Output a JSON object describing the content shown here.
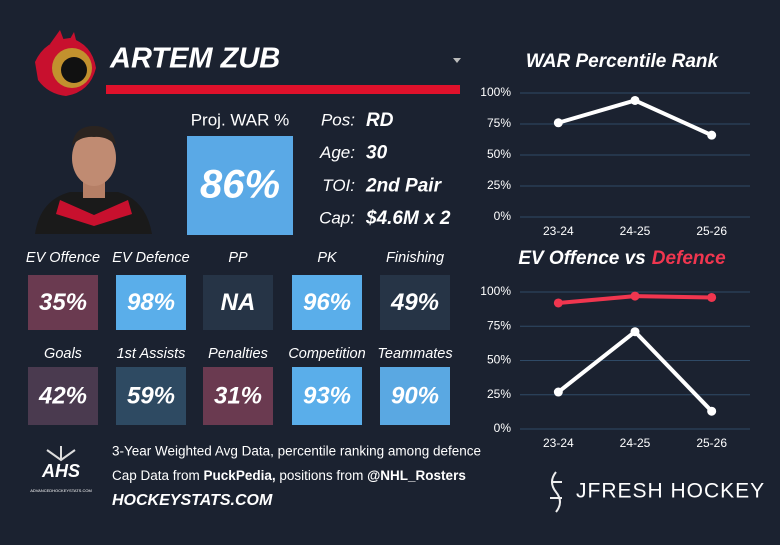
{
  "player": {
    "name": "ARTEM ZUB",
    "proj_war_label": "Proj. WAR %",
    "proj_war": "86%",
    "info": [
      {
        "label": "Pos:",
        "value": "RD"
      },
      {
        "label": "Age:",
        "value": "30"
      },
      {
        "label": "TOI:",
        "value": "2nd Pair"
      },
      {
        "label": "Cap:",
        "value": "$4.6M x 2"
      }
    ]
  },
  "tiles": [
    {
      "label": "EV Offence",
      "value": "35%",
      "color": "#6a3a50"
    },
    {
      "label": "EV Defence",
      "value": "98%",
      "color": "#5aaeea"
    },
    {
      "label": "PP",
      "value": "NA",
      "color": "#263446"
    },
    {
      "label": "PK",
      "value": "96%",
      "color": "#5aaeea"
    },
    {
      "label": "Finishing",
      "value": "49%",
      "color": "#263446"
    },
    {
      "label": "Goals",
      "value": "42%",
      "color": "#4a3a4f"
    },
    {
      "label": "1st Assists",
      "value": "59%",
      "color": "#2e4a62"
    },
    {
      "label": "Penalties",
      "value": "31%",
      "color": "#6a3a50"
    },
    {
      "label": "Competition",
      "value": "93%",
      "color": "#5aaeea"
    },
    {
      "label": "Teammates",
      "value": "90%",
      "color": "#5aa8e2"
    }
  ],
  "footer": {
    "logo": "AHS",
    "logo_small": "ADVANCEDHOCKEYSTATS.COM",
    "line1": "3-Year Weighted Avg Data, percentile ranking among defence",
    "line2": [
      "Cap Data from ",
      "PuckPedia,",
      " positions from ",
      "@NHL_Rosters"
    ],
    "site": "HOCKEYSTATS.COM",
    "brand": "JFRESH HOCKEY"
  },
  "chart_data": [
    {
      "type": "line",
      "title": "WAR Percentile Rank",
      "categories": [
        "23-24",
        "24-25",
        "25-26"
      ],
      "values": [
        76,
        94,
        66
      ],
      "color": "#ffffff",
      "ylim": [
        0,
        100
      ],
      "yticks": [
        {
          "value": 0,
          "label": "0%"
        },
        {
          "value": 25,
          "label": "25%"
        },
        {
          "value": 50,
          "label": "50%"
        },
        {
          "value": 75,
          "label": "75%"
        },
        {
          "value": 100,
          "label": "100%"
        }
      ],
      "grid": true
    },
    {
      "type": "line",
      "title_parts": [
        "EV Offence vs",
        "Defence"
      ],
      "categories": [
        "23-24",
        "24-25",
        "25-26"
      ],
      "series": [
        {
          "color": "#f0364f",
          "values": [
            92,
            97,
            96
          ]
        },
        {
          "color": "#ffffff",
          "values": [
            27,
            71,
            13
          ]
        }
      ],
      "ylim": [
        0,
        100
      ],
      "yticks": [
        {
          "value": 0,
          "label": "0%"
        },
        {
          "value": 25,
          "label": "25%"
        },
        {
          "value": 50,
          "label": "50%"
        },
        {
          "value": 75,
          "label": "75%"
        },
        {
          "value": 100,
          "label": "100%"
        }
      ],
      "grid": true
    }
  ]
}
